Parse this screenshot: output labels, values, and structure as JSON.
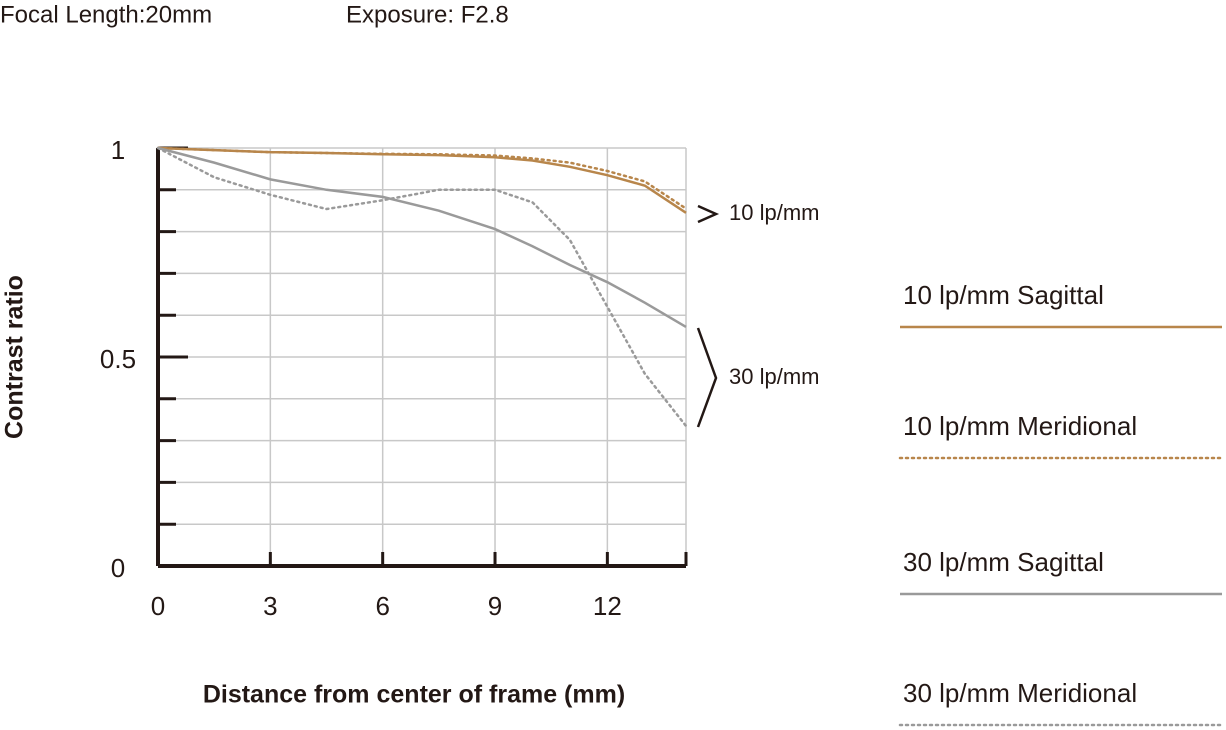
{
  "chart_data": {
    "type": "line",
    "header": [
      "Focal Length:20mm",
      "Exposure: F2.8"
    ],
    "xlabel": "Distance from center of frame (mm)",
    "ylabel": "Contrast ratio",
    "x": [
      0,
      1.5,
      3,
      4.5,
      6,
      7.5,
      9,
      10,
      11,
      12,
      13,
      14.1
    ],
    "series": [
      {
        "name": "10 lp/mm Sagittal",
        "color": "#b8864b",
        "style": "solid",
        "values": [
          1,
          0.995,
          0.99,
          0.988,
          0.985,
          0.983,
          0.978,
          0.97,
          0.955,
          0.935,
          0.91,
          0.845
        ]
      },
      {
        "name": "10 lp/mm Meridional",
        "color": "#b8864b",
        "style": "dotted",
        "values": [
          1,
          0.995,
          0.99,
          0.988,
          0.986,
          0.985,
          0.982,
          0.975,
          0.965,
          0.945,
          0.92,
          0.855
        ]
      },
      {
        "name": "30 lp/mm Sagittal",
        "color": "#9a9a9a",
        "style": "solid",
        "values": [
          1,
          0.965,
          0.925,
          0.9,
          0.883,
          0.85,
          0.806,
          0.765,
          0.72,
          0.679,
          0.63,
          0.572
        ]
      },
      {
        "name": "30 lp/mm Meridional",
        "color": "#9a9a9a",
        "style": "dotted",
        "values": [
          1,
          0.93,
          0.888,
          0.854,
          0.875,
          0.9,
          0.9,
          0.87,
          0.78,
          0.62,
          0.46,
          0.335
        ]
      }
    ],
    "annotations": [
      "10 lp/mm",
      "30 lp/mm"
    ],
    "xlim": [
      0,
      14.1
    ],
    "ylim": [
      0,
      1
    ],
    "xticks": [
      0,
      3,
      6,
      9,
      12
    ],
    "yticks": [
      0,
      0.5,
      1
    ],
    "minor_yticks": [
      0.1,
      0.2,
      0.3,
      0.4,
      0.6,
      0.7,
      0.8,
      0.9
    ],
    "grid": true
  }
}
